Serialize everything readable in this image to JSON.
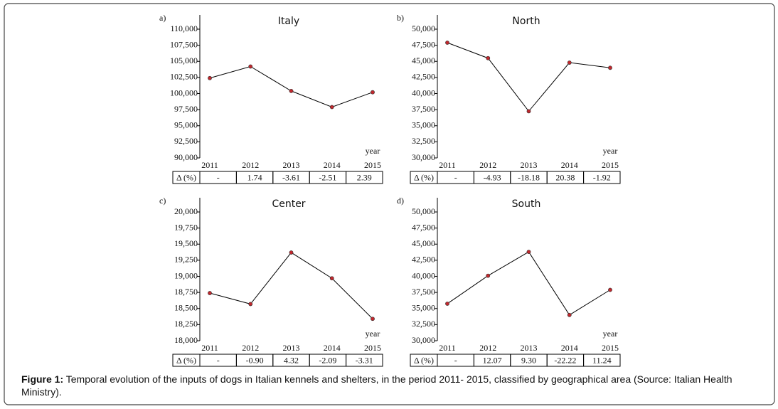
{
  "chart_data": [
    {
      "type": "line",
      "panel": "a)",
      "title": "Italy",
      "x_label": "year",
      "color": "#c0282d",
      "categories": [
        "2011",
        "2012",
        "2013",
        "2014",
        "2015"
      ],
      "values": [
        102400,
        104200,
        100400,
        97900,
        100200
      ],
      "ylim": [
        90000,
        110000
      ],
      "yticks": [
        {
          "value": 90000,
          "label": "90,000"
        },
        {
          "value": 92500,
          "label": "92,500"
        },
        {
          "value": 95000,
          "label": "95,000"
        },
        {
          "value": 97500,
          "label": "97,500"
        },
        {
          "value": 100000,
          "label": "100,000"
        },
        {
          "value": 102500,
          "label": "102,500"
        },
        {
          "value": 105000,
          "label": "105,000"
        },
        {
          "value": 107500,
          "label": "107,500"
        },
        {
          "value": 110000,
          "label": "110,000"
        }
      ],
      "delta_header": "Δ (%)",
      "delta": [
        "-",
        "1.74",
        "-3.61",
        "-2.51",
        "2.39"
      ]
    },
    {
      "type": "line",
      "panel": "b)",
      "title": "North",
      "x_label": "year",
      "color": "#c0282d",
      "categories": [
        "2011",
        "2012",
        "2013",
        "2014",
        "2015"
      ],
      "values": [
        47900,
        45500,
        37250,
        44800,
        44000
      ],
      "ylim": [
        30000,
        50000
      ],
      "yticks": [
        {
          "value": 30000,
          "label": "30,000"
        },
        {
          "value": 32500,
          "label": "32,500"
        },
        {
          "value": 35000,
          "label": "35,000"
        },
        {
          "value": 37500,
          "label": "37,500"
        },
        {
          "value": 40000,
          "label": "40,000"
        },
        {
          "value": 42500,
          "label": "42,500"
        },
        {
          "value": 45000,
          "label": "45,000"
        },
        {
          "value": 47500,
          "label": "47,500"
        },
        {
          "value": 50000,
          "label": "50,000"
        }
      ],
      "delta_header": "Δ (%)",
      "delta": [
        "-",
        "-4.93",
        "-18.18",
        "20.38",
        "-1.92"
      ]
    },
    {
      "type": "line",
      "panel": "c)",
      "title": "Center",
      "x_label": "year",
      "color": "#c0282d",
      "categories": [
        "2011",
        "2012",
        "2013",
        "2014",
        "2015"
      ],
      "values": [
        18740,
        18570,
        19370,
        18970,
        18340
      ],
      "ylim": [
        18000,
        20000
      ],
      "yticks": [
        {
          "value": 18000,
          "label": "18,000"
        },
        {
          "value": 18250,
          "label": "18,250"
        },
        {
          "value": 18500,
          "label": "18,500"
        },
        {
          "value": 18750,
          "label": "18,750"
        },
        {
          "value": 19000,
          "label": "19,000"
        },
        {
          "value": 19250,
          "label": "19,250"
        },
        {
          "value": 19500,
          "label": "19,500"
        },
        {
          "value": 19750,
          "label": "19,750"
        },
        {
          "value": 20000,
          "label": "20,000"
        }
      ],
      "delta_header": "Δ (%)",
      "delta": [
        "-",
        "-0.90",
        "4.32",
        "-2.09",
        "-3.31"
      ]
    },
    {
      "type": "line",
      "panel": "d)",
      "title": "South",
      "x_label": "year",
      "color": "#c0282d",
      "categories": [
        "2011",
        "2012",
        "2013",
        "2014",
        "2015"
      ],
      "values": [
        35750,
        40100,
        43800,
        34000,
        37900
      ],
      "ylim": [
        30000,
        50000
      ],
      "yticks": [
        {
          "value": 30000,
          "label": "30,000"
        },
        {
          "value": 32500,
          "label": "32,500"
        },
        {
          "value": 35000,
          "label": "35,000"
        },
        {
          "value": 37500,
          "label": "37,500"
        },
        {
          "value": 40000,
          "label": "40,000"
        },
        {
          "value": 42500,
          "label": "42,500"
        },
        {
          "value": 45000,
          "label": "45,000"
        },
        {
          "value": 47500,
          "label": "47,500"
        },
        {
          "value": 50000,
          "label": "50,000"
        }
      ],
      "delta_header": "Δ (%)",
      "delta": [
        "-",
        "12.07",
        "9.30",
        "-22.22",
        "11.24"
      ]
    }
  ],
  "caption": {
    "label": "Figure 1:",
    "text": "Temporal evolution of the inputs of dogs in Italian kennels and shelters, in the period 2011- 2015, classified by geographical area (Source: Italian Health Ministry)."
  }
}
